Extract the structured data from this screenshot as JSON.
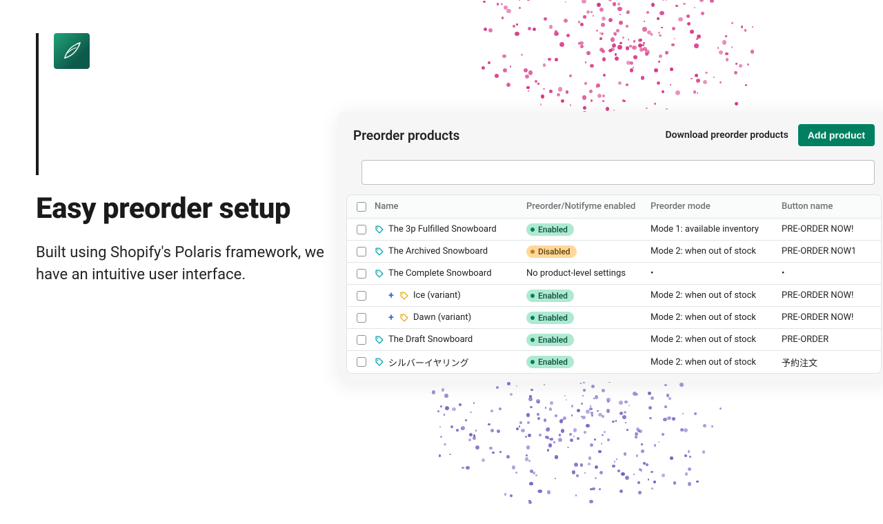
{
  "hero": {
    "heading": "Easy preorder setup",
    "subtext": "Built using Shopify's Polaris framework, we have an intuitive user interface."
  },
  "panel": {
    "title": "Preorder products",
    "download_label": "Download preorder products",
    "add_label": "Add product",
    "search_placeholder": ""
  },
  "columns": {
    "name": "Name",
    "status": "Preorder/Notifyme enabled",
    "mode": "Preorder mode",
    "button": "Button name"
  },
  "status_labels": {
    "enabled": "Enabled",
    "disabled": "Disabled"
  },
  "rows": [
    {
      "name": "The 3p Fulfilled Snowboard",
      "icon": "tag-teal",
      "status": "enabled",
      "mode": "Mode 1: available inventory",
      "button": "PRE-ORDER NOW!"
    },
    {
      "name": "The Archived Snowboard",
      "icon": "tag-teal",
      "status": "disabled",
      "mode": "Mode 2: when out of stock",
      "button": "PRE-ORDER NOW1"
    },
    {
      "name": "The Complete Snowboard",
      "icon": "tag-teal",
      "status": "none",
      "status_text": "No product-level settings",
      "mode": "•",
      "button": "•"
    },
    {
      "name": "Ice (variant)",
      "icon": "tag-yellow",
      "indent": true,
      "plus": true,
      "status": "enabled",
      "mode": "Mode 2: when out of stock",
      "button": "PRE-ORDER NOW!"
    },
    {
      "name": "Dawn (variant)",
      "icon": "tag-yellow",
      "indent": true,
      "plus": true,
      "status": "enabled",
      "mode": "Mode 2: when out of stock",
      "button": "PRE-ORDER NOW!"
    },
    {
      "name": "The Draft Snowboard",
      "icon": "tag-teal",
      "status": "enabled",
      "mode": "Mode 2: when out of stock",
      "button": "PRE-ORDER"
    },
    {
      "name": "シルバーイヤリング",
      "icon": "tag-teal",
      "status": "enabled",
      "mode": "Mode 2: when out of stock",
      "button": "予約注文"
    }
  ],
  "colors": {
    "accent_green": "#008060",
    "pill_enabled_bg": "#aee9d1",
    "pill_disabled_bg": "#ffd79d",
    "tag_teal": "#00a0ac",
    "tag_yellow": "#e6a817",
    "dot_magenta": "#d63384",
    "dot_purple": "#7b61c4"
  }
}
